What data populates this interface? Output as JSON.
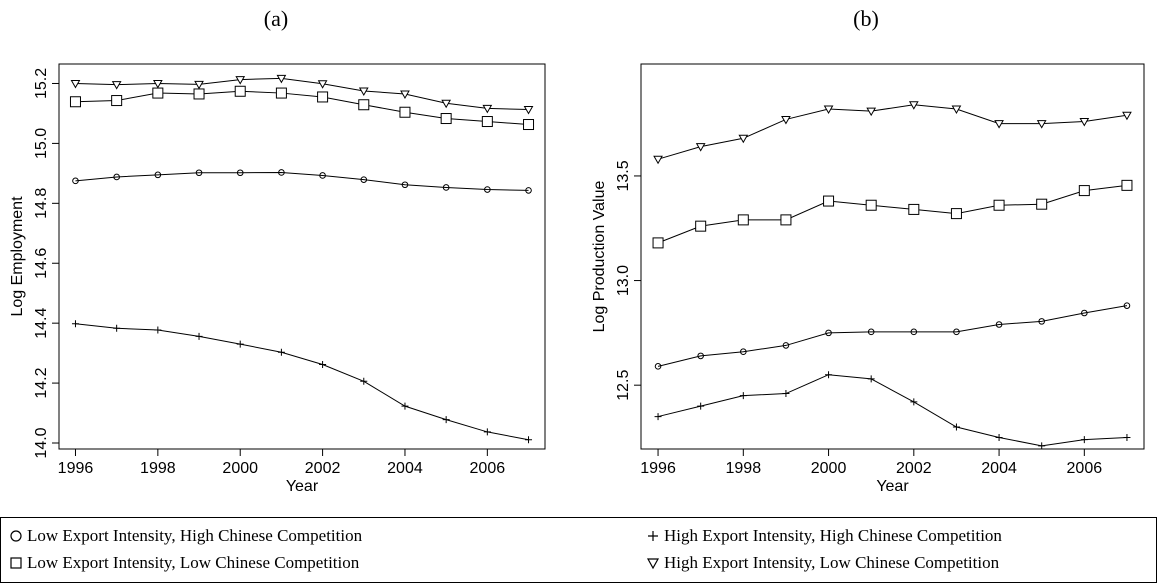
{
  "chart_data": [
    {
      "type": "line",
      "panel_label": "(a)",
      "xlabel": "Year",
      "ylabel": "Log Employment",
      "xlim": [
        1995.6,
        2007.4
      ],
      "ylim": [
        13.98,
        15.265
      ],
      "xticks": [
        1996,
        1998,
        2000,
        2002,
        2004,
        2006
      ],
      "yticks": [
        14.0,
        14.2,
        14.4,
        14.6,
        14.8,
        15.0,
        15.2
      ],
      "x": [
        1996,
        1997,
        1998,
        1999,
        2000,
        2001,
        2002,
        2003,
        2004,
        2005,
        2006,
        2007
      ],
      "series": [
        {
          "key": "low_exp_high_comp",
          "marker": "circle",
          "values": [
            14.875,
            14.888,
            14.895,
            14.902,
            14.902,
            14.903,
            14.893,
            14.879,
            14.862,
            14.853,
            14.846,
            14.843
          ]
        },
        {
          "key": "high_exp_high_comp",
          "marker": "plus",
          "values": [
            14.398,
            14.383,
            14.377,
            14.356,
            14.33,
            14.303,
            14.262,
            14.206,
            14.123,
            14.078,
            14.037,
            14.011
          ]
        },
        {
          "key": "low_exp_low_comp",
          "marker": "square",
          "values": [
            15.139,
            15.143,
            15.168,
            15.165,
            15.174,
            15.168,
            15.155,
            15.129,
            15.104,
            15.083,
            15.073,
            15.063
          ]
        },
        {
          "key": "high_exp_low_comp",
          "marker": "triangle",
          "values": [
            15.2,
            15.196,
            15.2,
            15.197,
            15.213,
            15.217,
            15.199,
            15.175,
            15.165,
            15.134,
            15.117,
            15.113
          ]
        }
      ]
    },
    {
      "type": "line",
      "panel_label": "(b)",
      "xlabel": "Year",
      "ylabel": "Log Production Value",
      "xlim": [
        1995.6,
        2007.4
      ],
      "ylim": [
        12.195,
        14.035
      ],
      "xticks": [
        1996,
        1998,
        2000,
        2002,
        2004,
        2006
      ],
      "yticks": [
        12.5,
        13.0,
        13.5
      ],
      "x": [
        1996,
        1997,
        1998,
        1999,
        2000,
        2001,
        2002,
        2003,
        2004,
        2005,
        2006,
        2007
      ],
      "series": [
        {
          "key": "low_exp_high_comp",
          "marker": "circle",
          "values": [
            12.59,
            12.64,
            12.66,
            12.69,
            12.75,
            12.755,
            12.755,
            12.755,
            12.79,
            12.805,
            12.845,
            12.88
          ]
        },
        {
          "key": "high_exp_high_comp",
          "marker": "plus",
          "values": [
            12.35,
            12.4,
            12.45,
            12.46,
            12.55,
            12.53,
            12.42,
            12.3,
            12.25,
            12.21,
            12.24,
            12.25
          ]
        },
        {
          "key": "low_exp_low_comp",
          "marker": "square",
          "values": [
            13.18,
            13.26,
            13.29,
            13.29,
            13.38,
            13.36,
            13.34,
            13.32,
            13.36,
            13.365,
            13.43,
            13.455
          ]
        },
        {
          "key": "high_exp_low_comp",
          "marker": "triangle",
          "values": [
            13.58,
            13.64,
            13.68,
            13.77,
            13.82,
            13.81,
            13.84,
            13.82,
            13.75,
            13.75,
            13.76,
            13.79
          ]
        }
      ]
    }
  ],
  "legend": {
    "items": [
      {
        "marker": "circle",
        "label": "Low Export Intensity, High Chinese Competition"
      },
      {
        "marker": "plus",
        "label": "High Export Intensity, High Chinese Competition"
      },
      {
        "marker": "square",
        "label": "Low Export Intensity, Low Chinese Competition"
      },
      {
        "marker": "triangle",
        "label": "High Export Intensity, Low Chinese Competition"
      }
    ]
  },
  "colors": {
    "ink": "#000000",
    "background": "#ffffff"
  }
}
